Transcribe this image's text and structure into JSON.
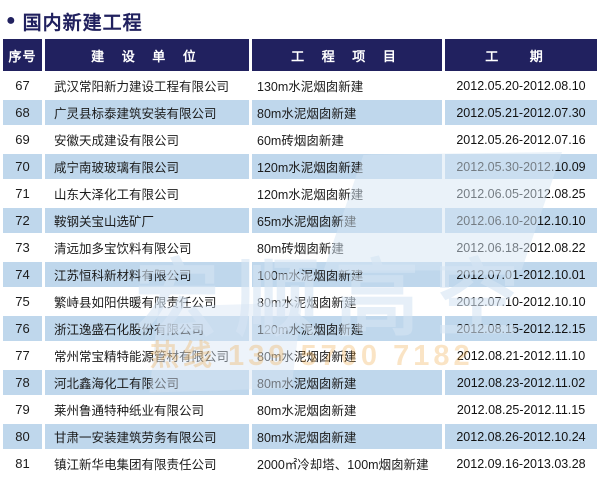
{
  "page_title": {
    "bullet": "●",
    "text": "国内新建工程"
  },
  "colors": {
    "navy": "#21215f",
    "row_alt": "#bfd7ec",
    "row_base": "#ffffff",
    "watermark_blue": "#d6e5f4",
    "watermark_orange": "#f0a031"
  },
  "table": {
    "headers": [
      {
        "label": "序号"
      },
      {
        "label": "建 设 单 位"
      },
      {
        "label": "工 程 项 目"
      },
      {
        "label": "工  期"
      }
    ],
    "rows": [
      {
        "no": "67",
        "company": "武汉常阳新力建设工程有限公司",
        "project": "130m水泥烟囱新建",
        "period": "2012.05.20-2012.08.10"
      },
      {
        "no": "68",
        "company": "广灵县标泰建筑安装有限公司",
        "project": "80m水泥烟囱新建",
        "period": "2012.05.21-2012.07.30"
      },
      {
        "no": "69",
        "company": "安徽天成建设有限公司",
        "project": "60m砖烟囱新建",
        "period": "2012.05.26-2012.07.16"
      },
      {
        "no": "70",
        "company": "咸宁南玻玻璃有限公司",
        "project": "120m水泥烟囱新建",
        "period": "2012.05.30-2012.10.09"
      },
      {
        "no": "71",
        "company": "山东大泽化工有限公司",
        "project": "120m水泥烟囱新建",
        "period": "2012.06.05-2012.08.25"
      },
      {
        "no": "72",
        "company": "鞍钢关宝山选矿厂",
        "project": "65m水泥烟囱新建",
        "period": "2012.06.10-2012.10.10"
      },
      {
        "no": "73",
        "company": "清远加多宝饮料有限公司",
        "project": "80m砖烟囱新建",
        "period": "2012.06.18-2012.08.22"
      },
      {
        "no": "74",
        "company": "江苏恒科新材料有限公司",
        "project": "100m水泥烟囱新建",
        "period": "2012.07.01-2012.10.01"
      },
      {
        "no": "75",
        "company": "繁峙县如阳供暖有限责任公司",
        "project": "80m水泥烟囱新建",
        "period": "2012.07.10-2012.10.10"
      },
      {
        "no": "76",
        "company": "浙江逸盛石化股份有限公司",
        "project": "120m水泥烟囱新建",
        "period": "2012.08.15-2012.12.15"
      },
      {
        "no": "77",
        "company": "常州常宝精特能源管材有限公司",
        "project": "80m水泥烟囱新建",
        "period": "2012.08.21-2012.11.10"
      },
      {
        "no": "78",
        "company": "河北鑫海化工有限公司",
        "project": "80m水泥烟囱新建",
        "period": "2012.08.23-2012.11.02"
      },
      {
        "no": "79",
        "company": "莱州鲁通特种纸业有限公司",
        "project": "80m水泥烟囱新建",
        "period": "2012.08.25-2012.11.15"
      },
      {
        "no": "80",
        "company": "甘肃一安装建筑劳务有限公司",
        "project": "80m水泥烟囱新建",
        "period": "2012.08.26-2012.10.24"
      },
      {
        "no": "81",
        "company": "镇江新华电集团有限责任公司",
        "project": "2000㎡冷却塔、100m烟囱新建",
        "period": "2012.09.16-2013.03.28"
      }
    ]
  },
  "watermark": {
    "brand": "宏顺高空",
    "hotline": "热线 139 5700 7182"
  }
}
